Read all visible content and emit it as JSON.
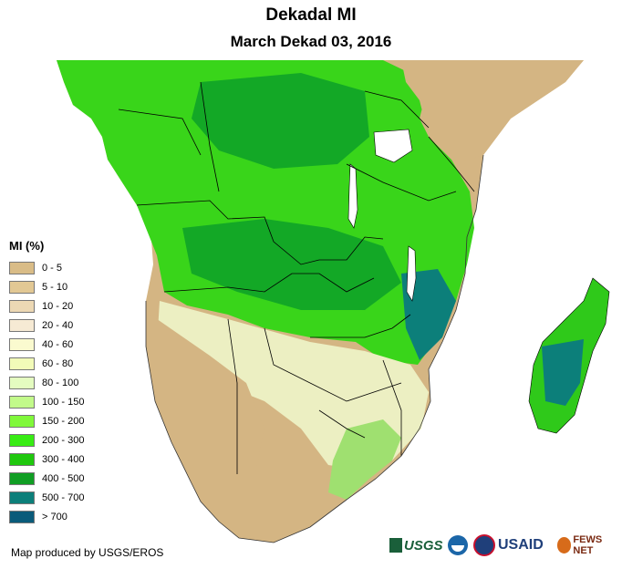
{
  "header": {
    "title": "Dekadal MI",
    "subtitle": "March Dekad 03, 2016"
  },
  "legend": {
    "title": "MI (%)",
    "items": [
      {
        "label": "0 - 5",
        "color": "#d9bc87"
      },
      {
        "label": "5 - 10",
        "color": "#e2c894"
      },
      {
        "label": "10 - 20",
        "color": "#ecd8b4"
      },
      {
        "label": "20 - 40",
        "color": "#f6ead4"
      },
      {
        "label": "40 - 60",
        "color": "#fafacf"
      },
      {
        "label": "60 - 80",
        "color": "#f2fbb8"
      },
      {
        "label": "80 - 100",
        "color": "#e4fcc0"
      },
      {
        "label": "100 - 150",
        "color": "#c2fa8a"
      },
      {
        "label": "150 - 200",
        "color": "#80f83a"
      },
      {
        "label": "200 - 300",
        "color": "#38ec14"
      },
      {
        "label": "300 - 400",
        "color": "#1fc80e"
      },
      {
        "label": "400 - 500",
        "color": "#109e24"
      },
      {
        "label": "500 - 700",
        "color": "#0c7f7a"
      },
      {
        "label": "> 700",
        "color": "#0a5b7a"
      }
    ]
  },
  "footer": {
    "credit": "Map produced by USGS/EROS"
  },
  "logos": [
    "usgs-logo",
    "noaa-logo",
    "usaid-logo",
    "fews-net-logo"
  ]
}
